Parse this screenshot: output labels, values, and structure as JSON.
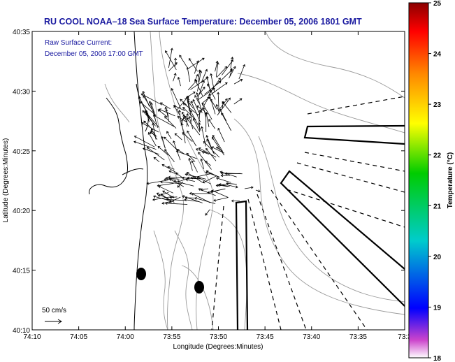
{
  "title": "RU COOL  NOAA–18  Sea Surface Temperature:  December 05, 2006 1801 GMT",
  "current_label": {
    "line1": "Raw Surface Current:",
    "line2": "December 05, 2006 17:00 GMT"
  },
  "scale": {
    "label": "50 cm/s"
  },
  "axes": {
    "xlabel": "Longitude (Degrees:Minutes)",
    "ylabel": "Latitude (Degrees:Minutes)",
    "xticks": [
      "74:10",
      "74:05",
      "74:00",
      "73:55",
      "73:50",
      "73:45",
      "73:40",
      "73:35",
      "73:3"
    ],
    "yticks": [
      "40:35",
      "40:30",
      "40:25",
      "40:20",
      "40:15",
      "40:10"
    ]
  },
  "colorbar": {
    "label": "Temperature (°C)",
    "ticks": [
      "25",
      "24",
      "23",
      "22",
      "21",
      "20",
      "19",
      "18"
    ],
    "min": 18,
    "max": 25,
    "colors": [
      "#ffffff",
      "#cc44cc",
      "#0000ff",
      "#00cccc",
      "#00cc00",
      "#ffff00",
      "#ff8800",
      "#ff0000",
      "#8b0000"
    ]
  },
  "colors": {
    "title": "#1a1aa0",
    "land_outline": "#000000",
    "bathymetry": "#999999",
    "vectors": "#000000"
  }
}
